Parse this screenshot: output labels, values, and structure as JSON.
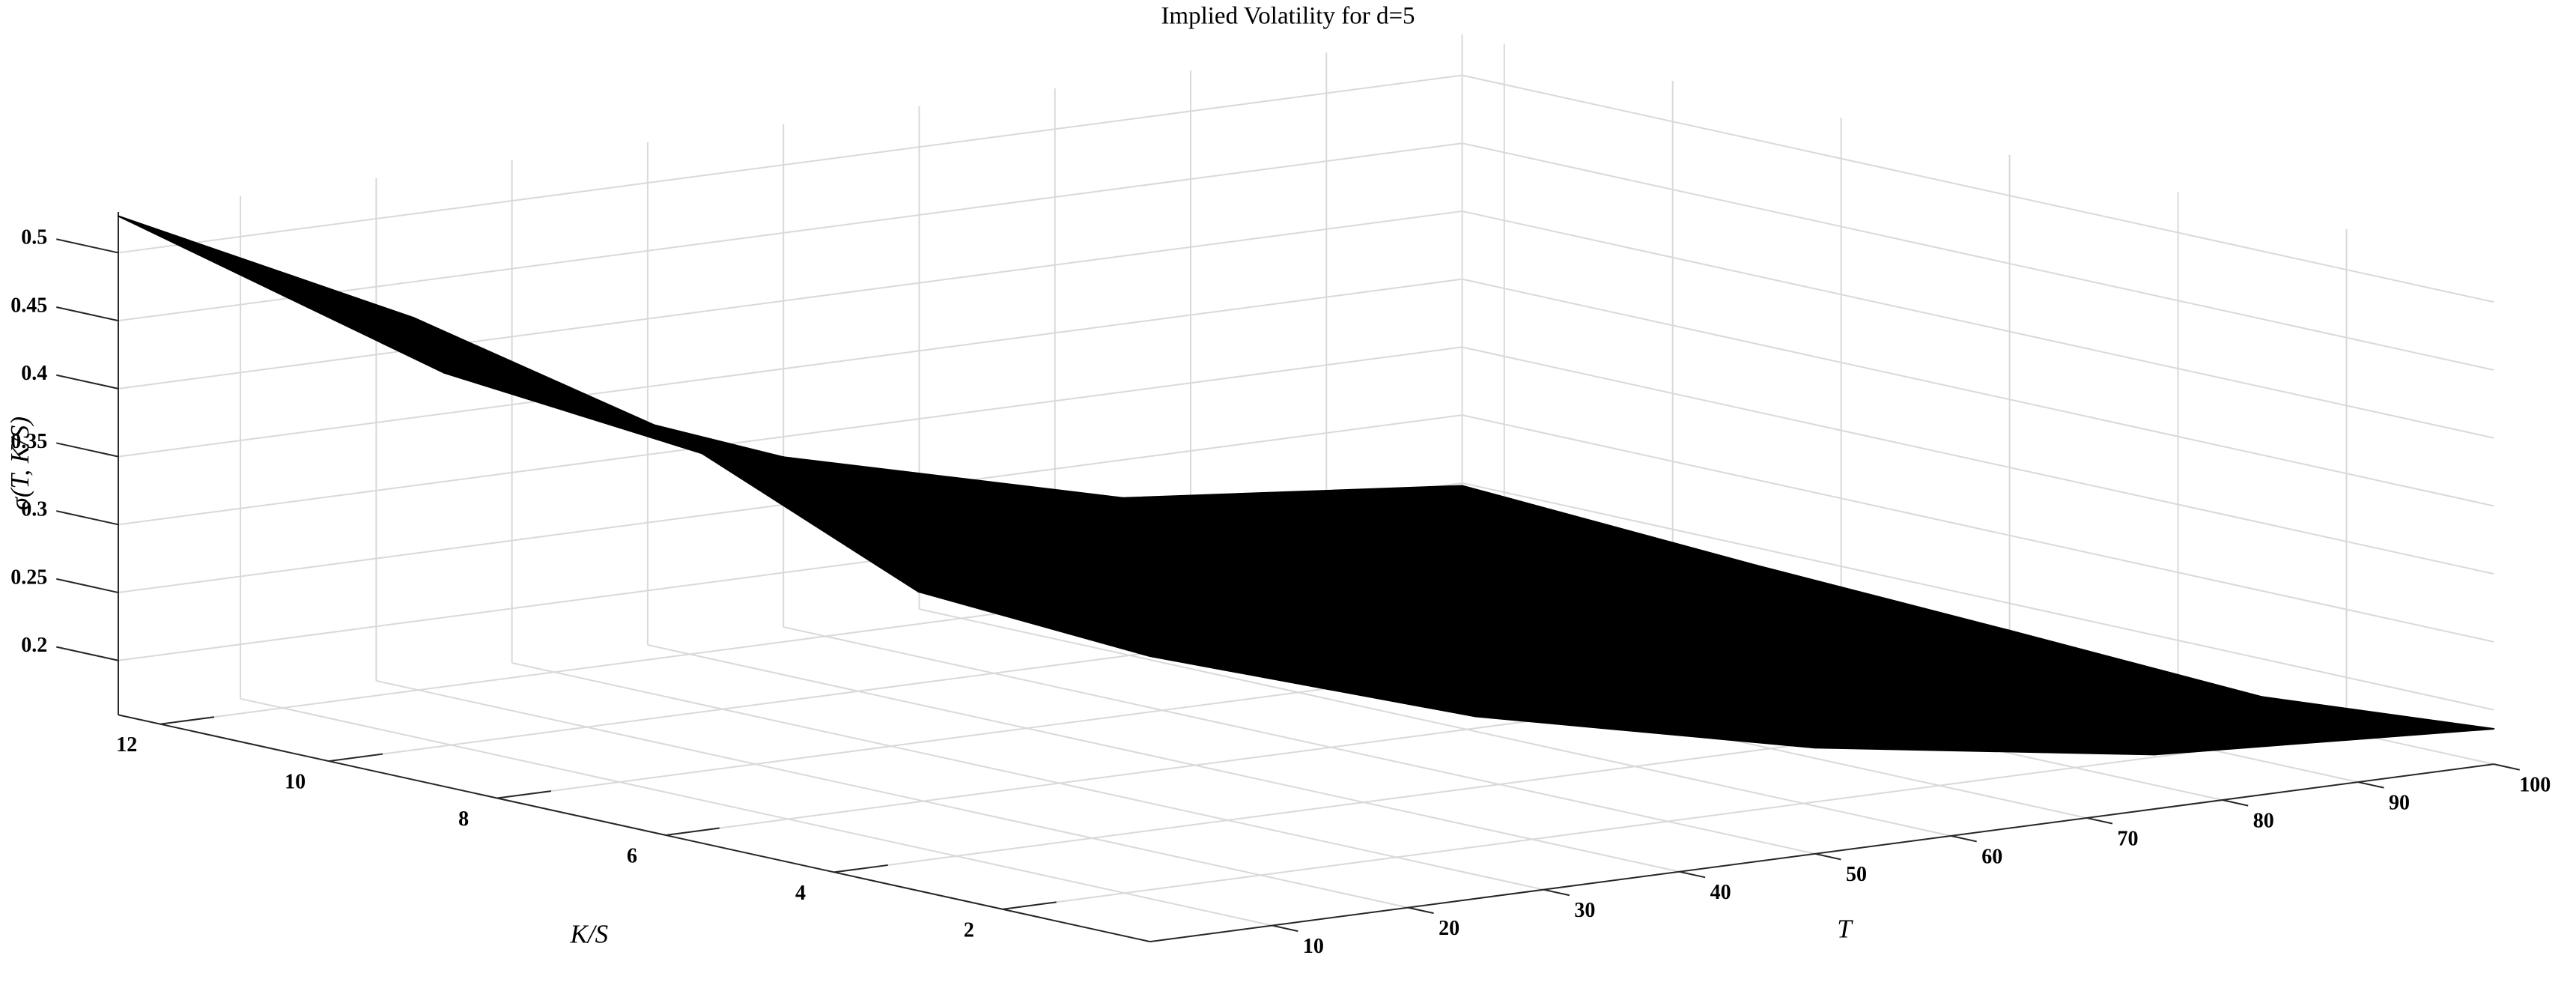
{
  "chart_data": {
    "type": "surface",
    "title": "Implied Volatility for d=5",
    "xlabel": "T",
    "ylabel": "K/S",
    "zlabel": "σ(T, K/S)",
    "x": [
      1,
      25,
      50,
      75,
      100
    ],
    "y": [
      0.25,
      3,
      6,
      9,
      12.5
    ],
    "z": [
      [
        0.37,
        0.294,
        0.238,
        0.2,
        0.186
      ],
      [
        0.38,
        0.31,
        0.245,
        0.195,
        0.172
      ],
      [
        0.458,
        0.34,
        0.26,
        0.2,
        0.18
      ],
      [
        0.5,
        0.36,
        0.27,
        0.21,
        0.187
      ],
      [
        0.527,
        0.38,
        0.285,
        0.222,
        0.198
      ]
    ],
    "color": "#000000",
    "xlim": [
      1,
      100
    ],
    "ylim": [
      0.25,
      12.5
    ],
    "zlim": [
      0.16,
      0.53
    ],
    "xticks": [
      10,
      20,
      30,
      40,
      50,
      60,
      70,
      80,
      90,
      100
    ],
    "yticks": [
      2,
      4,
      6,
      8,
      10,
      12
    ],
    "zticks": [
      0.2,
      0.25,
      0.3,
      0.35,
      0.4,
      0.45,
      0.5
    ],
    "grid": true
  }
}
